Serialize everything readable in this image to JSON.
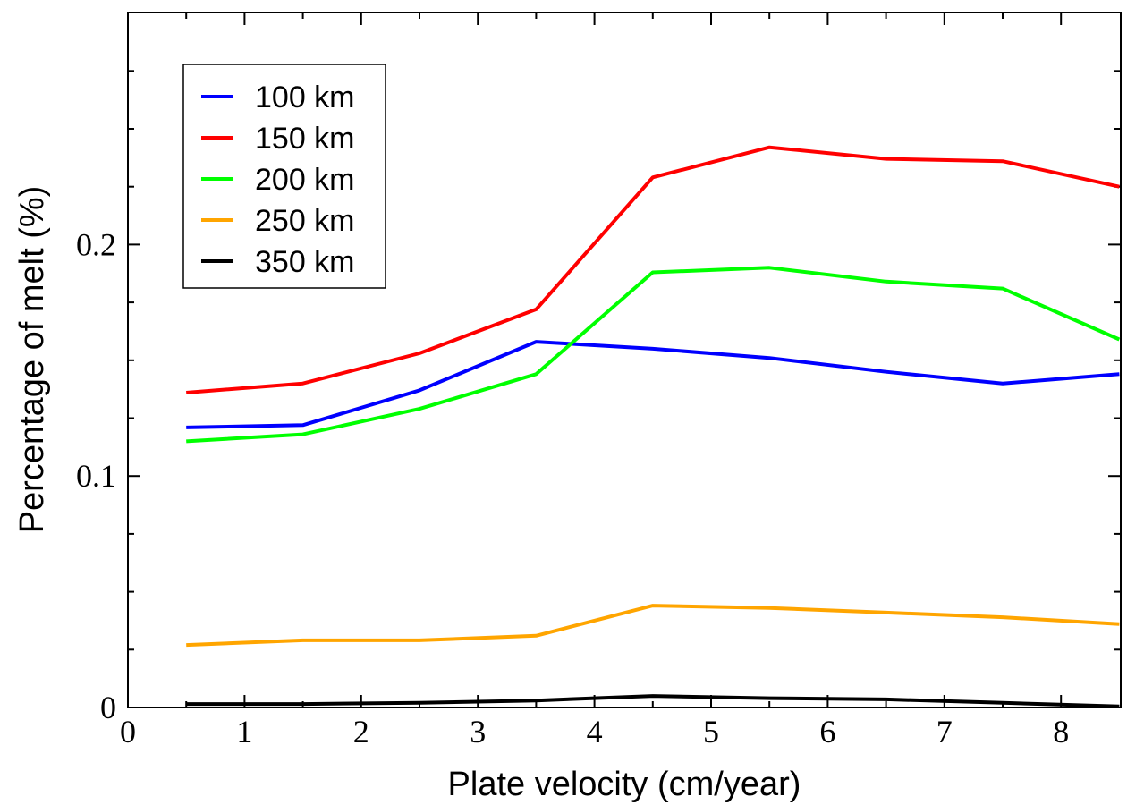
{
  "chart_data": {
    "type": "line",
    "title": "",
    "xlabel": "Plate velocity (cm/year)",
    "ylabel": "Percentage of melt (%)",
    "xlim": [
      0,
      8.5
    ],
    "ylim": [
      0,
      0.3
    ],
    "x_ticks": [
      "0",
      "1",
      "2",
      "3",
      "4",
      "5",
      "6",
      "7",
      "8"
    ],
    "y_ticks": [
      "0",
      "0.1",
      "0.2"
    ],
    "grid": false,
    "legend_position": "top-left",
    "x": [
      0.5,
      1.5,
      2.5,
      3.5,
      4.5,
      5.5,
      6.5,
      7.5,
      8.5
    ],
    "series": [
      {
        "name": "100 km",
        "color": "#0000ff",
        "values": [
          0.121,
          0.122,
          0.137,
          0.158,
          0.155,
          0.151,
          0.145,
          0.14,
          0.144
        ]
      },
      {
        "name": "150 km",
        "color": "#ff0000",
        "values": [
          0.136,
          0.14,
          0.153,
          0.172,
          0.229,
          0.242,
          0.237,
          0.236,
          0.225
        ]
      },
      {
        "name": "200 km",
        "color": "#00ff00",
        "values": [
          0.115,
          0.118,
          0.129,
          0.144,
          0.188,
          0.19,
          0.184,
          0.181,
          0.159
        ]
      },
      {
        "name": "250 km",
        "color": "#ffa500",
        "values": [
          0.027,
          0.029,
          0.029,
          0.031,
          0.044,
          0.043,
          0.041,
          0.039,
          0.036
        ]
      },
      {
        "name": "350 km",
        "color": "#000000",
        "values": [
          0.0015,
          0.0015,
          0.002,
          0.003,
          0.005,
          0.004,
          0.0035,
          0.002,
          0.0005
        ]
      }
    ]
  }
}
